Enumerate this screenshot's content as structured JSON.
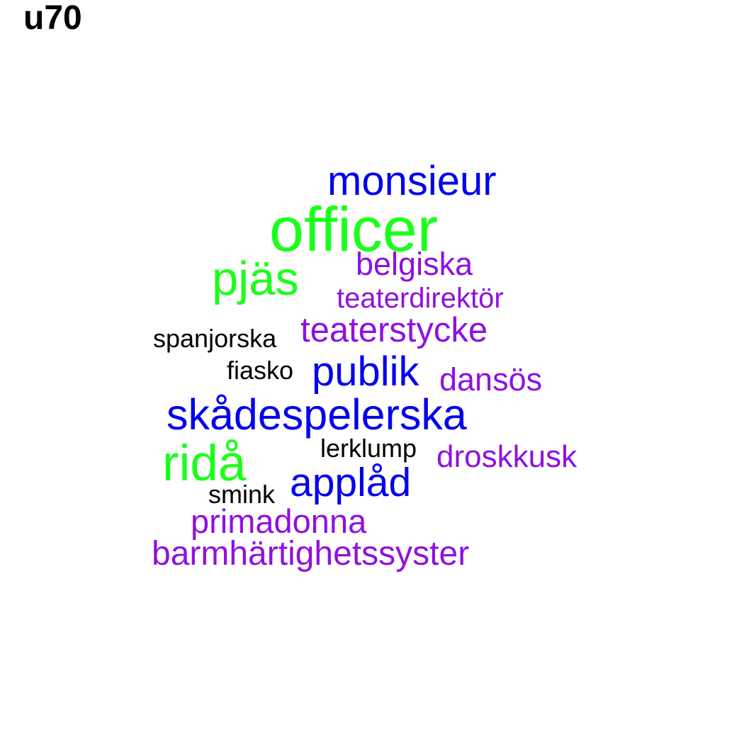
{
  "title": "u70",
  "colors": {
    "green": "#1aff1a",
    "blue": "#0000ee",
    "purple": "#9010e0",
    "black": "#000000"
  },
  "words": {
    "monsieur": "monsieur",
    "officer": "officer",
    "belgiska": "belgiska",
    "pjas": "pjäs",
    "teaterdirektor": "teaterdirektör",
    "teaterstycke": "teaterstycke",
    "spanjorska": "spanjorska",
    "fiasko": "fiasko",
    "publik": "publik",
    "dansos": "dansös",
    "skadespelerska": "skådespelerska",
    "lerklump": "lerklump",
    "rida": "ridå",
    "droskkusk": "droskkusk",
    "applad": "applåd",
    "smink": "smink",
    "primadonna": "primadonna",
    "barmhartighetssyster": "barmhärtighetssyster"
  }
}
